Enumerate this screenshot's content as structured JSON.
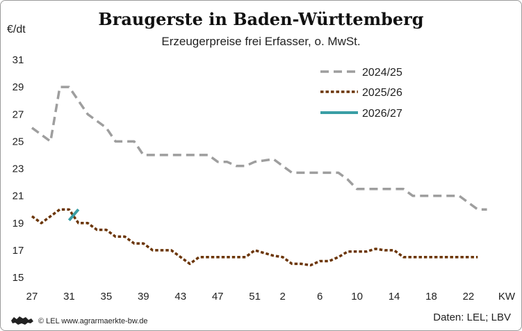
{
  "header": {
    "title": "Braugerste in Baden-Württemberg",
    "subtitle": "Erzeugerpreise frei Erfasser, o. MwSt.",
    "unit": "€/dt"
  },
  "footer": {
    "credit": "© LEL www.agrarmaerkte-bw.de",
    "source": "Daten: LEL; LBV"
  },
  "colors": {
    "series_2024_25": "#9e9e9e",
    "series_2025_26": "#6b3507",
    "series_2026_27": "#3a9ea5"
  },
  "chart_data": {
    "type": "line",
    "title": "Braugerste in Baden-Württemberg",
    "subtitle": "Erzeugerpreise frei Erfasser, o. MwSt.",
    "ylabel": "€/dt",
    "xlabel": "KW",
    "ylim": [
      15,
      31
    ],
    "yticks": [
      15,
      17,
      19,
      21,
      23,
      25,
      27,
      29,
      31
    ],
    "xticks": [
      "27",
      "31",
      "35",
      "39",
      "43",
      "47",
      "51",
      "2",
      "6",
      "10",
      "14",
      "18",
      "22"
    ],
    "x_unit_label": "KW",
    "grid": false,
    "legend_position": "top-right",
    "series": [
      {
        "name": "2024/25",
        "style": "dashed",
        "x": [
          "27",
          "29",
          "30",
          "31",
          "33",
          "35",
          "36",
          "37",
          "38",
          "39",
          "40",
          "45",
          "46",
          "47",
          "48",
          "49",
          "50",
          "51",
          "52",
          "1",
          "2",
          "3",
          "4",
          "5",
          "6",
          "7",
          "8",
          "9",
          "10",
          "12",
          "14",
          "15",
          "16",
          "18",
          "20",
          "21",
          "22",
          "23",
          "24"
        ],
        "values": [
          26.0,
          25.0,
          29.0,
          29.0,
          27.0,
          26.0,
          25.0,
          25.0,
          25.0,
          24.0,
          24.0,
          24.0,
          24.0,
          23.5,
          23.5,
          23.2,
          23.2,
          23.5,
          23.6,
          23.7,
          23.2,
          22.7,
          22.7,
          22.7,
          22.7,
          22.7,
          22.7,
          22.2,
          21.5,
          21.5,
          21.5,
          21.5,
          21.0,
          21.0,
          21.0,
          21.0,
          20.5,
          20.0,
          20.0
        ]
      },
      {
        "name": "2025/26",
        "style": "dotted",
        "x": [
          "27",
          "28",
          "29",
          "30",
          "31",
          "32",
          "33",
          "34",
          "35",
          "36",
          "37",
          "38",
          "39",
          "40",
          "41",
          "42",
          "43",
          "44",
          "45",
          "46",
          "47",
          "48",
          "49",
          "50",
          "51",
          "52",
          "1",
          "2",
          "3",
          "4",
          "5",
          "6",
          "7",
          "8",
          "9",
          "10",
          "11",
          "12",
          "13",
          "14",
          "15",
          "16",
          "17",
          "18",
          "19",
          "20",
          "21",
          "22",
          "23"
        ],
        "values": [
          19.5,
          19.0,
          19.5,
          20.0,
          20.0,
          19.0,
          19.0,
          18.5,
          18.5,
          18.0,
          18.0,
          17.5,
          17.5,
          17.0,
          17.0,
          17.0,
          16.5,
          16.0,
          16.5,
          16.5,
          16.5,
          16.5,
          16.5,
          16.5,
          17.0,
          16.8,
          16.6,
          16.5,
          16.0,
          16.0,
          15.9,
          16.2,
          16.2,
          16.5,
          16.9,
          16.9,
          16.9,
          17.1,
          17.0,
          17.0,
          16.5,
          16.5,
          16.5,
          16.5,
          16.5,
          16.5,
          16.5,
          16.5,
          16.5
        ]
      },
      {
        "name": "2026/27",
        "style": "solid",
        "x": [
          "31",
          "32"
        ],
        "values": [
          19.2,
          20.0
        ]
      }
    ]
  }
}
